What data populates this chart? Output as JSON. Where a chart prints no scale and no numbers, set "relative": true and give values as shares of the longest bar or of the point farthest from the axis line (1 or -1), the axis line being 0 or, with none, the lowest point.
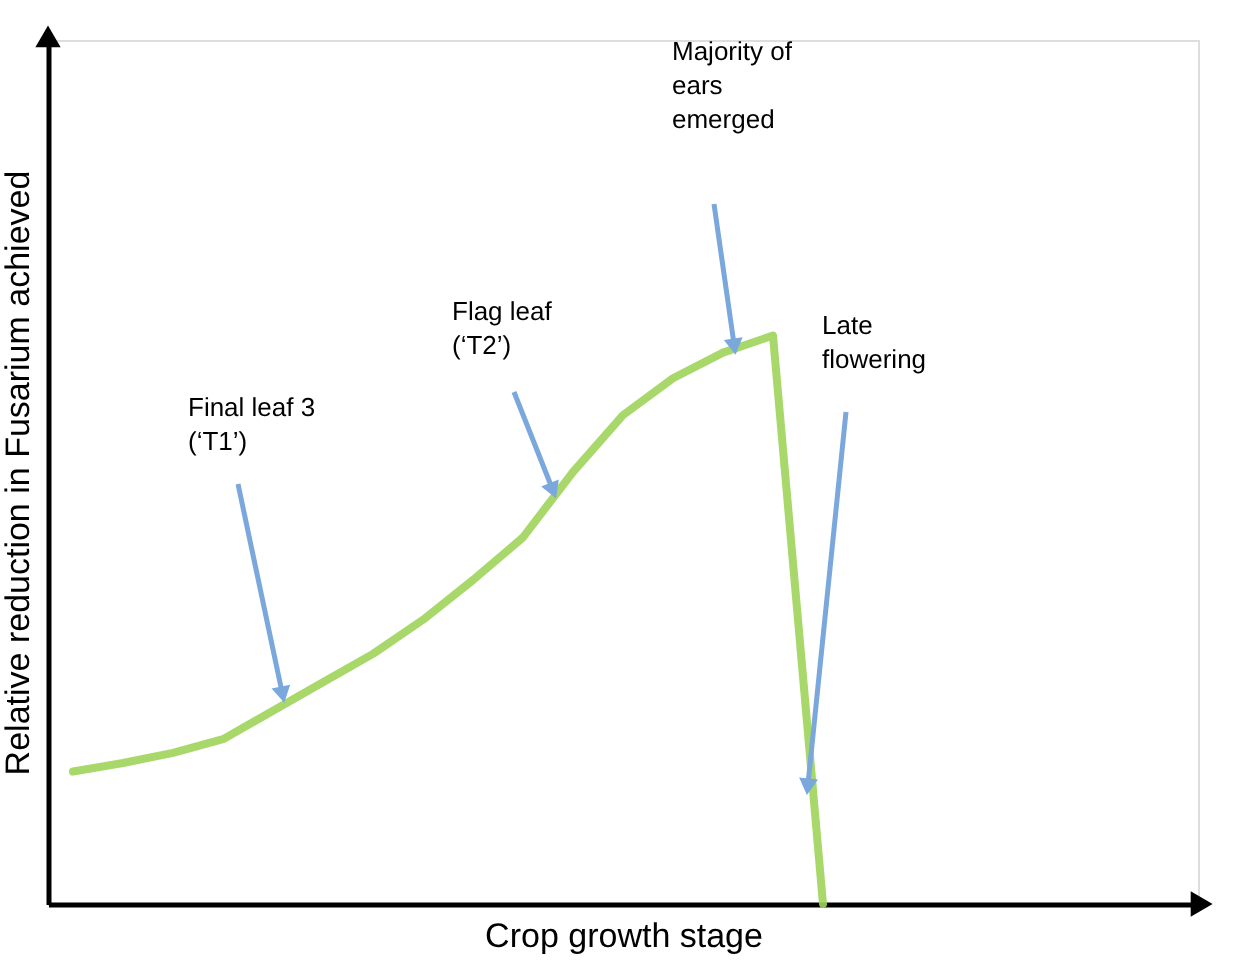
{
  "chart_data": {
    "type": "line",
    "xlabel": "Crop growth stage",
    "ylabel": "Relative reduction in Fusarium achieved",
    "relative": true,
    "tick_labels": false,
    "color": "#9fd35a",
    "categories": [
      null,
      null,
      null,
      null,
      null,
      null,
      null,
      null,
      null,
      null,
      null,
      null,
      null,
      null,
      null,
      null,
      null,
      null,
      null,
      null,
      null,
      null,
      null
    ],
    "values": [
      0.233,
      0.248,
      0.266,
      0.29,
      0.34,
      0.39,
      0.44,
      0.5,
      0.57,
      0.645,
      0.76,
      0.86,
      0.925,
      0.97,
      1,
      0,
      null,
      null,
      null,
      null,
      null,
      null,
      null
    ],
    "annotations": [
      "Final leaf 3\n(‘T1’)",
      "Flag leaf\n(‘T2’)",
      "Majority of\nears\nemerged",
      "Late\nflowering"
    ]
  }
}
